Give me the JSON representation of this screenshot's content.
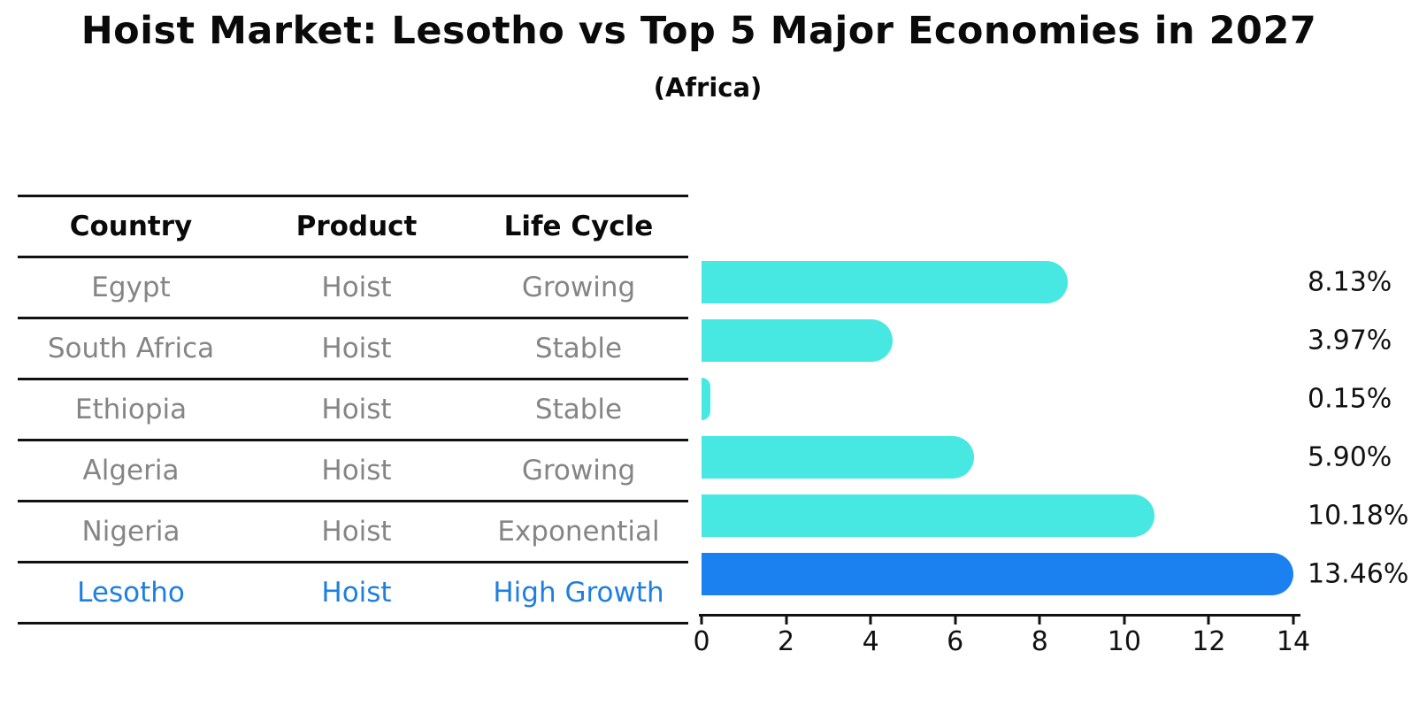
{
  "title": "Hoist Market: Lesotho vs Top 5 Major Economies in 2027",
  "subtitle": "(Africa)",
  "table": {
    "headers": [
      "Country",
      "Product",
      "Life Cycle"
    ],
    "rows": [
      [
        "Egypt",
        "Hoist",
        "Growing"
      ],
      [
        "South Africa",
        "Hoist",
        "Stable"
      ],
      [
        "Ethiopia",
        "Hoist",
        "Stable"
      ],
      [
        "Algeria",
        "Hoist",
        "Growing"
      ],
      [
        "Nigeria",
        "Hoist",
        "Exponential"
      ],
      [
        "Lesotho",
        "Hoist",
        "High Growth"
      ]
    ]
  },
  "chart_data": {
    "type": "bar",
    "orientation": "horizontal",
    "title": "Hoist Market: Lesotho vs Top 5 Major Economies in 2027",
    "subtitle": "(Africa)",
    "categories": [
      "Egypt",
      "South Africa",
      "Ethiopia",
      "Algeria",
      "Nigeria",
      "Lesotho"
    ],
    "values": [
      8.13,
      3.97,
      0.15,
      5.9,
      10.18,
      13.46
    ],
    "labels": [
      "8.13%",
      "3.97%",
      "0.15%",
      "5.90%",
      "10.18%",
      "13.46%"
    ],
    "xlim": [
      0,
      14
    ],
    "xticks": [
      0,
      2,
      4,
      6,
      8,
      10,
      12,
      14
    ],
    "highlight_index": 5,
    "grid": false,
    "legend": "none"
  },
  "colors": {
    "bar-cyan": "#48E8E2",
    "bar-blue": "#1B80F0",
    "row-text": "#858585",
    "highlight-text": "#1E7FE0",
    "axis-text": "#111111"
  }
}
